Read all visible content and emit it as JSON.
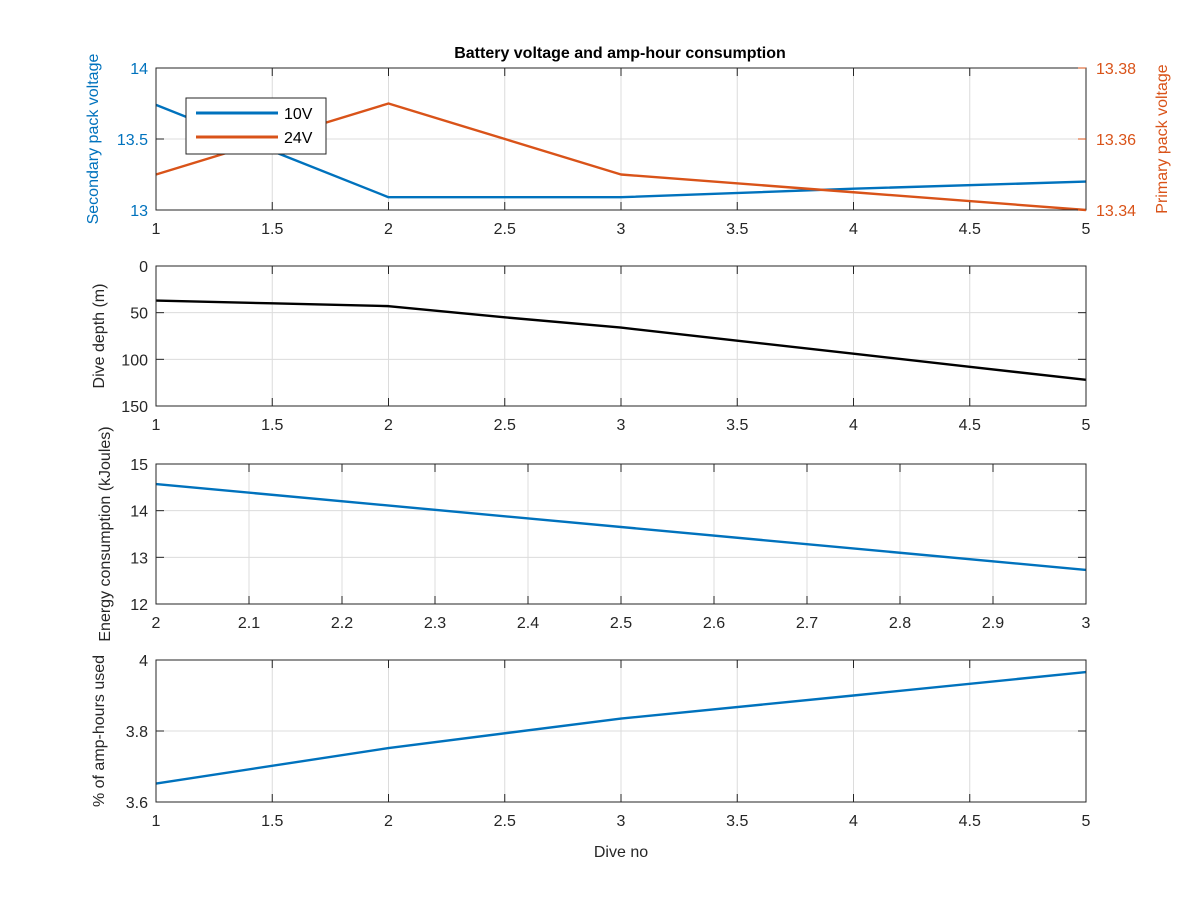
{
  "figure": {
    "title": "Battery voltage and amp-hour consumption"
  },
  "colors": {
    "blue": "#0072BD",
    "orange": "#D95319",
    "black": "#000000",
    "grid": "#dcdcdc",
    "axis": "#262626"
  },
  "chart_data": [
    {
      "type": "line",
      "title": "Battery voltage and amp-hour consumption",
      "xlim": [
        1,
        5
      ],
      "xticks": [
        "1",
        "1.5",
        "2",
        "2.5",
        "3",
        "3.5",
        "4",
        "4.5",
        "5"
      ],
      "ylabel": "Secondary pack voltage",
      "ylim": [
        13,
        14
      ],
      "yticks": [
        "13",
        "13.5",
        "14"
      ],
      "ylabel_right": "Primary pack voltage",
      "ylim_right": [
        13.34,
        13.38
      ],
      "yticks_right": [
        "13.34",
        "13.36",
        "13.38"
      ],
      "grid": true,
      "legend": {
        "placement": "top-left",
        "entries": [
          "10V",
          "24V"
        ]
      },
      "series": [
        {
          "name": "10V",
          "axis": "left",
          "x": [
            1,
            2,
            3,
            4,
            5
          ],
          "values": [
            13.74,
            13.09,
            13.09,
            13.15,
            13.2
          ]
        },
        {
          "name": "24V",
          "axis": "right",
          "x": [
            1,
            2,
            3,
            4,
            5
          ],
          "values": [
            13.35,
            13.37,
            13.35,
            13.345,
            13.34
          ]
        }
      ]
    },
    {
      "type": "line",
      "xlim": [
        1,
        5
      ],
      "xticks": [
        "1",
        "1.5",
        "2",
        "2.5",
        "3",
        "3.5",
        "4",
        "4.5",
        "5"
      ],
      "ylabel": "Dive depth (m)",
      "ylim": [
        0,
        150
      ],
      "yticks": [
        "0",
        "50",
        "100",
        "150"
      ],
      "y_reversed": true,
      "grid": true,
      "series": [
        {
          "x": [
            1,
            1.5,
            2,
            2.5,
            3,
            3.5,
            4,
            4.5,
            5
          ],
          "values": [
            37,
            40,
            43,
            55,
            66,
            80,
            94,
            108,
            122
          ]
        }
      ]
    },
    {
      "type": "line",
      "xlim": [
        2,
        3
      ],
      "xticks": [
        "2",
        "2.1",
        "2.2",
        "2.3",
        "2.4",
        "2.5",
        "2.6",
        "2.7",
        "2.8",
        "2.9",
        "3"
      ],
      "ylabel": "Energy consumption (kJoules)",
      "ylim": [
        12,
        15
      ],
      "yticks": [
        "12",
        "13",
        "14",
        "15"
      ],
      "grid": true,
      "series": [
        {
          "x": [
            2,
            3
          ],
          "values": [
            14.57,
            12.73
          ]
        }
      ]
    },
    {
      "type": "line",
      "xlim": [
        1,
        5
      ],
      "xticks": [
        "1",
        "1.5",
        "2",
        "2.5",
        "3",
        "3.5",
        "4",
        "4.5",
        "5"
      ],
      "xlabel": "Dive no",
      "ylabel": "% of amp-hours used",
      "ylim": [
        3.6,
        4
      ],
      "yticks": [
        "3.6",
        "3.8",
        "4"
      ],
      "grid": true,
      "series": [
        {
          "x": [
            1,
            2,
            3,
            4,
            5
          ],
          "values": [
            3.652,
            3.752,
            3.835,
            3.9,
            3.966
          ]
        }
      ]
    }
  ]
}
